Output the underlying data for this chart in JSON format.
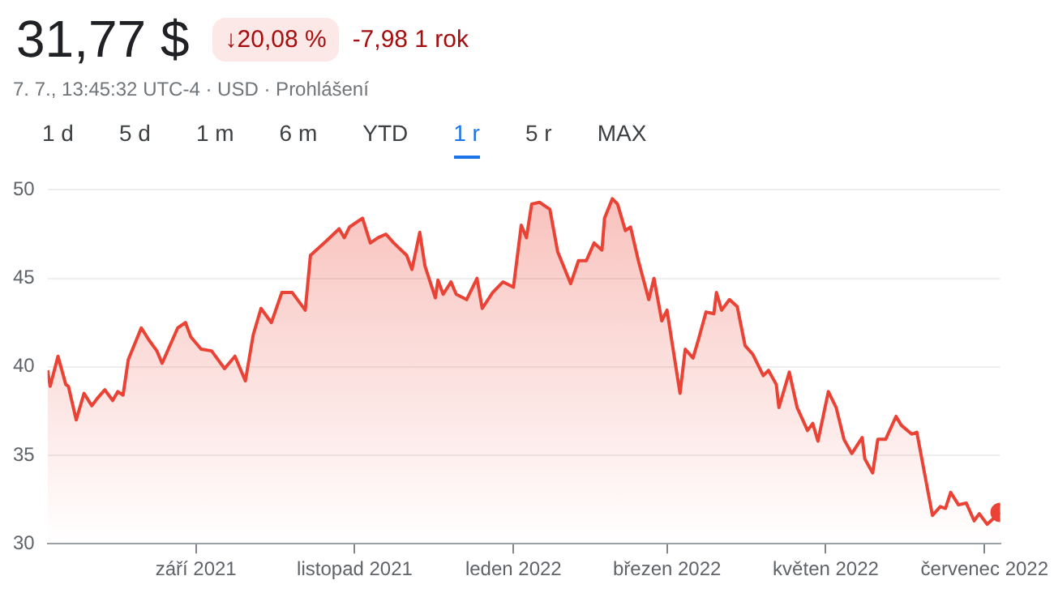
{
  "chart_data": {
    "type": "area",
    "title": "31,77 $",
    "subtitle": "7. 7., 13:45:32 UTC-4 · USD · Prohlášení",
    "annotations": [
      "↓20,08 %",
      "-7,98 1 rok",
      "1 d",
      "5 d",
      "1 m",
      "6 m",
      "YTD",
      "1 r",
      "5 r",
      "MAX"
    ],
    "x": [
      "2021-07-06",
      "2021-07-07",
      "2021-07-10",
      "2021-07-13",
      "2021-07-14",
      "2021-07-17",
      "2021-07-20",
      "2021-07-23",
      "2021-07-25",
      "2021-07-28",
      "2021-07-31",
      "2021-08-02",
      "2021-08-04",
      "2021-08-06",
      "2021-08-11",
      "2021-08-14",
      "2021-08-17",
      "2021-08-19",
      "2021-08-25",
      "2021-08-28",
      "2021-08-30",
      "2021-09-03",
      "2021-09-07",
      "2021-09-12",
      "2021-09-16",
      "2021-09-20",
      "2021-09-23",
      "2021-09-26",
      "2021-09-30",
      "2021-10-04",
      "2021-10-08",
      "2021-10-13",
      "2021-10-15",
      "2021-10-21",
      "2021-10-26",
      "2021-10-28",
      "2021-10-30",
      "2021-11-04",
      "2021-11-07",
      "2021-11-10",
      "2021-11-13",
      "2021-11-16",
      "2021-11-21",
      "2021-11-23",
      "2021-11-26",
      "2021-11-28",
      "2021-12-02",
      "2021-12-03",
      "2021-12-05",
      "2021-12-08",
      "2021-12-10",
      "2021-12-14",
      "2021-12-18",
      "2021-12-20",
      "2021-12-24",
      "2021-12-28",
      "2022-01-01",
      "2022-01-04",
      "2022-01-06",
      "2022-01-08",
      "2022-01-11",
      "2022-01-15",
      "2022-01-18",
      "2022-01-23",
      "2022-01-26",
      "2022-01-29",
      "2022-02-01",
      "2022-02-04",
      "2022-02-05",
      "2022-02-08",
      "2022-02-10",
      "2022-02-13",
      "2022-02-15",
      "2022-02-18",
      "2022-02-22",
      "2022-02-24",
      "2022-02-27",
      "2022-03-01",
      "2022-03-06",
      "2022-03-08",
      "2022-03-11",
      "2022-03-13",
      "2022-03-16",
      "2022-03-19",
      "2022-03-20",
      "2022-03-22",
      "2022-03-25",
      "2022-03-28",
      "2022-03-31",
      "2022-04-03",
      "2022-04-07",
      "2022-04-09",
      "2022-04-12",
      "2022-04-13",
      "2022-04-17",
      "2022-04-20",
      "2022-04-24",
      "2022-04-26",
      "2022-04-28",
      "2022-05-02",
      "2022-05-05",
      "2022-05-08",
      "2022-05-11",
      "2022-05-15",
      "2022-05-16",
      "2022-05-19",
      "2022-05-21",
      "2022-05-24",
      "2022-05-28",
      "2022-05-30",
      "2022-06-03",
      "2022-06-05",
      "2022-06-11",
      "2022-06-14",
      "2022-06-16",
      "2022-06-18",
      "2022-06-21",
      "2022-06-24",
      "2022-06-27",
      "2022-06-29",
      "2022-07-02",
      "2022-07-07"
    ],
    "series": [
      {
        "color": "#ea4335",
        "values": [
          39.8,
          38.9,
          40.6,
          39.0,
          38.9,
          37.0,
          38.5,
          37.8,
          38.2,
          38.7,
          38.1,
          38.6,
          38.4,
          40.4,
          42.2,
          41.5,
          40.9,
          40.2,
          42.2,
          42.5,
          41.7,
          41.0,
          40.9,
          39.9,
          40.6,
          39.2,
          41.8,
          43.3,
          42.5,
          44.2,
          44.2,
          43.2,
          46.3,
          47.1,
          47.8,
          47.3,
          47.9,
          48.4,
          47.0,
          47.3,
          47.5,
          47.0,
          46.3,
          45.5,
          47.6,
          45.7,
          43.9,
          44.9,
          44.1,
          44.8,
          44.1,
          43.8,
          45.0,
          43.3,
          44.2,
          44.8,
          44.5,
          48.0,
          47.3,
          49.2,
          49.3,
          48.9,
          46.5,
          44.7,
          46.0,
          46.0,
          47.0,
          46.6,
          48.4,
          49.5,
          49.2,
          47.7,
          47.9,
          46.0,
          43.8,
          45.0,
          42.6,
          43.2,
          38.5,
          41.0,
          40.5,
          41.5,
          43.1,
          43.0,
          44.2,
          43.2,
          43.8,
          43.4,
          41.2,
          40.7,
          39.5,
          39.8,
          39.0,
          37.7,
          39.7,
          37.7,
          36.4,
          36.8,
          35.8,
          38.6,
          37.7,
          35.9,
          35.1,
          36.0,
          34.8,
          34.0,
          35.9,
          35.9,
          37.2,
          36.7,
          36.2,
          36.3,
          31.6,
          32.1,
          32.0,
          32.9,
          32.2,
          32.3,
          31.3,
          31.7,
          31.1,
          31.77
        ]
      }
    ],
    "xlim": [
      "2021-07-06",
      "2022-07-07"
    ],
    "xticks": [
      {
        "value": "2021-09-01",
        "label": "září 2021"
      },
      {
        "value": "2021-11-01",
        "label": "listopad 2021"
      },
      {
        "value": "2022-01-01",
        "label": "leden 2022"
      },
      {
        "value": "2022-03-01",
        "label": "březen 2022"
      },
      {
        "value": "2022-05-01",
        "label": "květen 2022"
      },
      {
        "value": "2022-07-01",
        "label": "červenec 2022"
      }
    ],
    "ylim": [
      30,
      50
    ],
    "yticks": [
      30,
      35,
      40,
      45,
      50
    ],
    "grid": "y",
    "marker": "none",
    "line_style": "solid",
    "legend": false
  }
}
